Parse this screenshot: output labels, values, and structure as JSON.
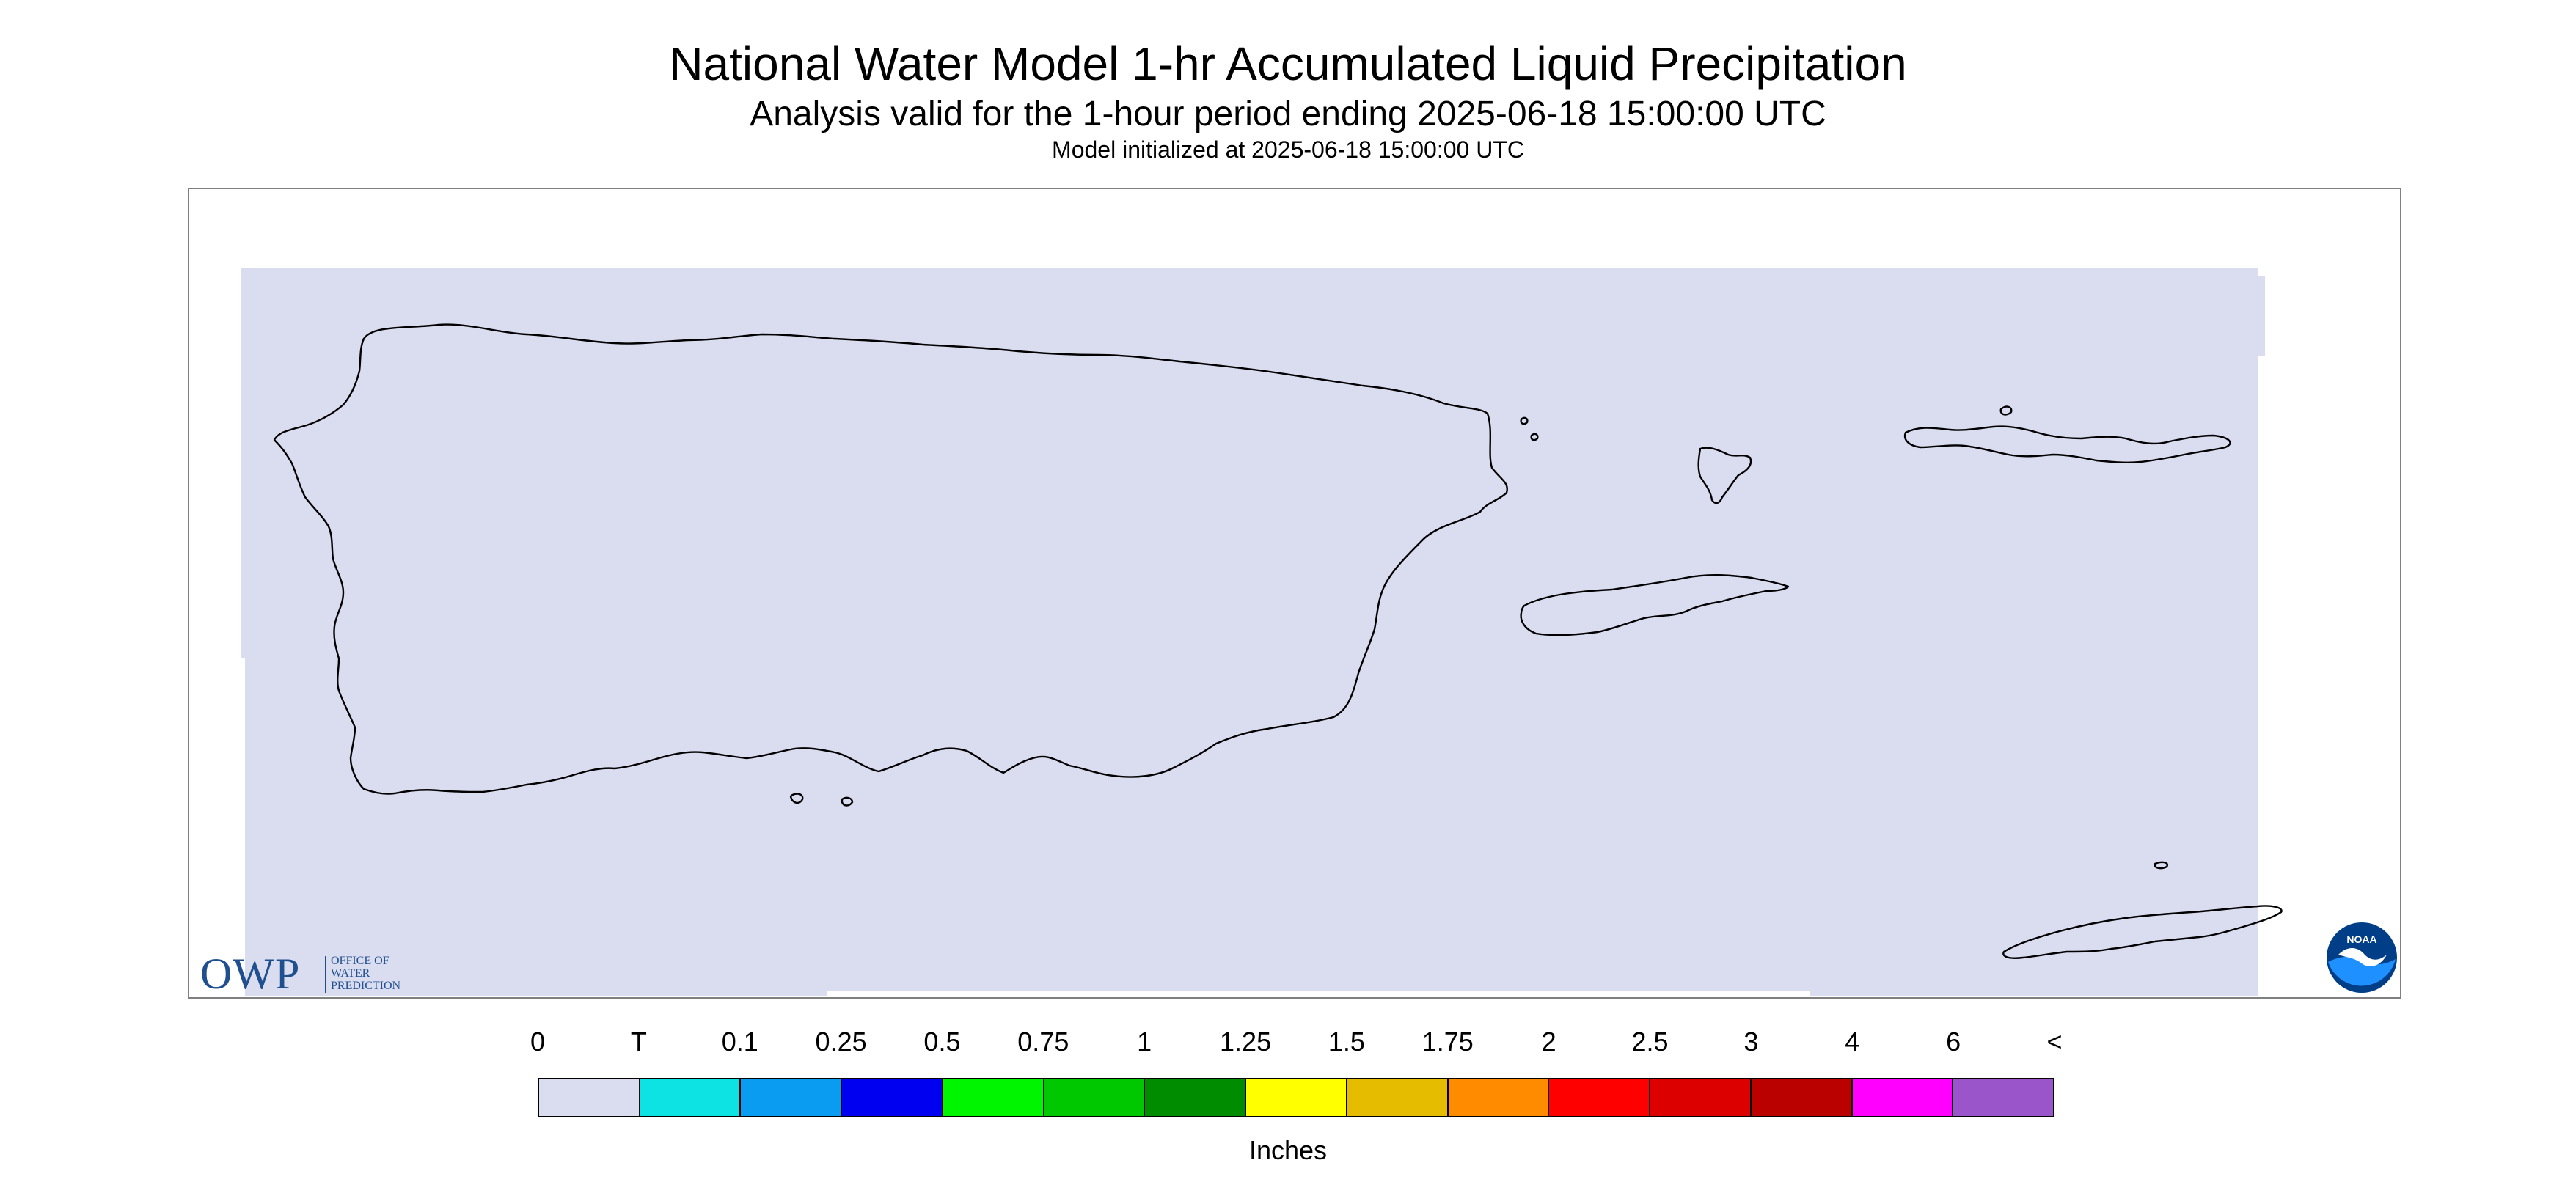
{
  "title": "National Water Model 1-hr Accumulated Liquid Precipitation",
  "subtitle": "Analysis valid for the 1-hour period ending 2025-06-18 15:00:00 UTC",
  "init_line": "Model initialized at 2025-06-18 15:00:00 UTC",
  "map": {
    "region": "Puerto Rico and U.S. Virgin Islands",
    "precip_color": "#dadcf0",
    "coastline_color": "#000000"
  },
  "owp_logo": {
    "mark": "OWP",
    "lines": [
      "OFFICE OF",
      "WATER",
      "PREDICTION"
    ],
    "color": "#1f4f8f"
  },
  "noaa_logo": {
    "text": "NOAA",
    "colors": [
      "#003f87",
      "#1e90ff",
      "#ffffff"
    ]
  },
  "legend": {
    "tick_labels": [
      "0",
      "T",
      "0.1",
      "0.25",
      "0.5",
      "0.75",
      "1",
      "1.25",
      "1.5",
      "1.75",
      "2",
      "2.5",
      "3",
      "4",
      "6",
      "<"
    ],
    "colors": [
      "#dadcf0",
      "#0ee3e3",
      "#0a9cf0",
      "#0000f0",
      "#00f500",
      "#00c800",
      "#008c00",
      "#ffff00",
      "#e6bc00",
      "#ff8c00",
      "#ff0000",
      "#dd0000",
      "#bb0000",
      "#ff00ff",
      "#9955c9"
    ],
    "units": "Inches"
  }
}
